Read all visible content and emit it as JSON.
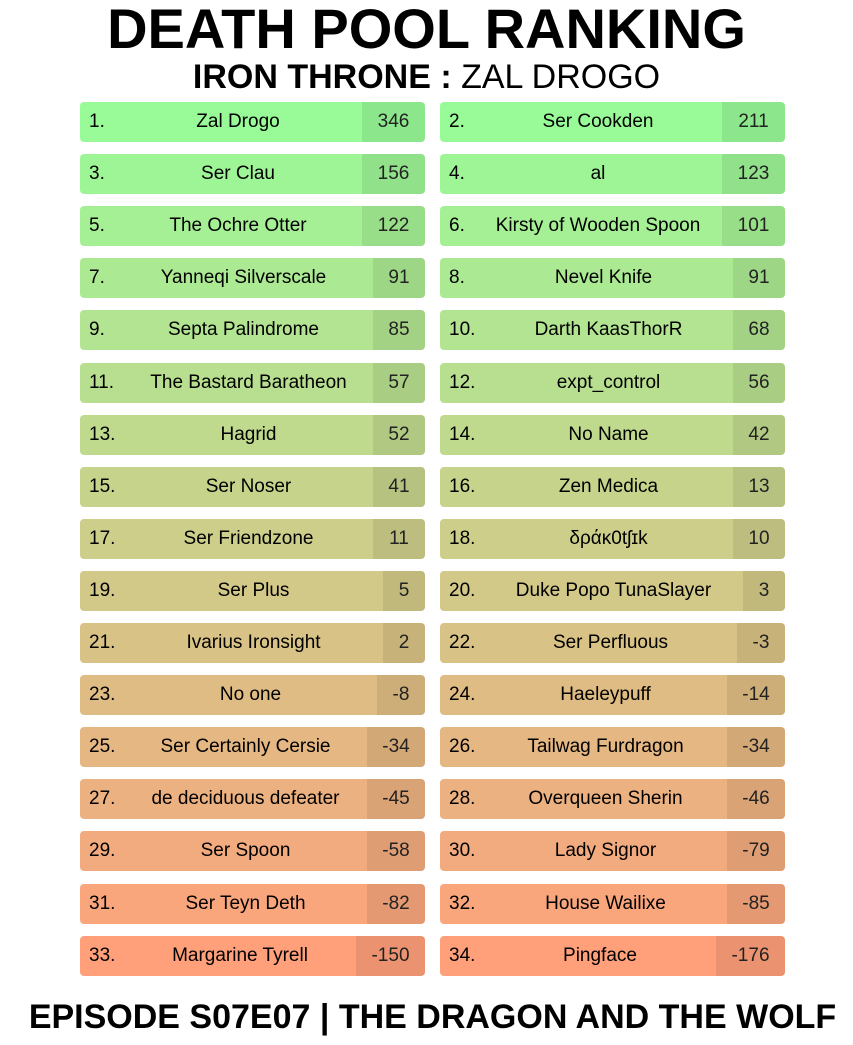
{
  "title": "DEATH POOL RANKING",
  "subtitle": {
    "label": "IRON THRONE :",
    "champion": "ZAL DROGO"
  },
  "footer": "EPISODE S07E07 | THE DRAGON AND THE WOLF",
  "colors": {
    "top": "#98fb98",
    "bottom": "#ffa07a"
  },
  "players": [
    {
      "rank": "1.",
      "name": "Zal Drogo",
      "score": "346"
    },
    {
      "rank": "2.",
      "name": "Ser Cookden",
      "score": "211"
    },
    {
      "rank": "3.",
      "name": "Ser Clau",
      "score": "156"
    },
    {
      "rank": "4.",
      "name": "al",
      "score": "123"
    },
    {
      "rank": "5.",
      "name": "The Ochre Otter",
      "score": "122"
    },
    {
      "rank": "6.",
      "name": "Kirsty of Wooden Spoon",
      "score": "101"
    },
    {
      "rank": "7.",
      "name": "Yanneqi Silverscale",
      "score": "91"
    },
    {
      "rank": "8.",
      "name": "Nevel Knife",
      "score": "91"
    },
    {
      "rank": "9.",
      "name": "Septa Palindrome",
      "score": "85"
    },
    {
      "rank": "10.",
      "name": "Darth KaasThorR",
      "score": "68"
    },
    {
      "rank": "11.",
      "name": "The Bastard Baratheon",
      "score": "57"
    },
    {
      "rank": "12.",
      "name": "expt_control",
      "score": "56"
    },
    {
      "rank": "13.",
      "name": "Hagrid",
      "score": "52"
    },
    {
      "rank": "14.",
      "name": "No Name",
      "score": "42"
    },
    {
      "rank": "15.",
      "name": "Ser Noser",
      "score": "41"
    },
    {
      "rank": "16.",
      "name": "Zen Medica",
      "score": "13"
    },
    {
      "rank": "17.",
      "name": "Ser Friendzone",
      "score": "11"
    },
    {
      "rank": "18.",
      "name": "δράκ0tʃɪk",
      "score": "10"
    },
    {
      "rank": "19.",
      "name": "Ser Plus",
      "score": "5"
    },
    {
      "rank": "20.",
      "name": "Duke Popo TunaSlayer",
      "score": "3"
    },
    {
      "rank": "21.",
      "name": "Ivarius Ironsight",
      "score": "2"
    },
    {
      "rank": "22.",
      "name": "Ser Perfluous",
      "score": "-3"
    },
    {
      "rank": "23.",
      "name": "No one",
      "score": "-8"
    },
    {
      "rank": "24.",
      "name": "Haeleypuff",
      "score": "-14"
    },
    {
      "rank": "25.",
      "name": "Ser Certainly Cersie",
      "score": "-34"
    },
    {
      "rank": "26.",
      "name": "Tailwag Furdragon",
      "score": "-34"
    },
    {
      "rank": "27.",
      "name": "de deciduous defeater",
      "score": "-45"
    },
    {
      "rank": "28.",
      "name": "Overqueen Sherin",
      "score": "-46"
    },
    {
      "rank": "29.",
      "name": "Ser Spoon",
      "score": "-58"
    },
    {
      "rank": "30.",
      "name": "Lady Signor",
      "score": "-79"
    },
    {
      "rank": "31.",
      "name": "Ser Teyn Deth",
      "score": "-82"
    },
    {
      "rank": "32.",
      "name": "House Wailixe",
      "score": "-85"
    },
    {
      "rank": "33.",
      "name": "Margarine Tyrell",
      "score": "-150"
    },
    {
      "rank": "34.",
      "name": "Pingface",
      "score": "-176"
    }
  ]
}
